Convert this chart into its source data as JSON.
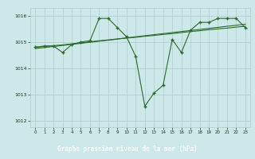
{
  "xlabel": "Graphe pression niveau de la mer (hPa)",
  "x": [
    0,
    1,
    2,
    3,
    4,
    5,
    6,
    7,
    8,
    9,
    10,
    11,
    12,
    13,
    14,
    15,
    16,
    17,
    18,
    19,
    20,
    21,
    22,
    23
  ],
  "y_main": [
    1014.8,
    1014.85,
    1014.85,
    1014.6,
    1014.9,
    1015.0,
    1015.05,
    1015.9,
    1015.9,
    1015.55,
    1015.2,
    1014.45,
    1012.55,
    1013.05,
    1013.35,
    1015.1,
    1014.6,
    1015.45,
    1015.75,
    1015.75,
    1015.9,
    1015.9,
    1015.9,
    1015.55
  ],
  "y_line1": [
    1014.8,
    1014.83,
    1014.86,
    1014.89,
    1014.93,
    1014.97,
    1015.01,
    1015.05,
    1015.08,
    1015.12,
    1015.15,
    1015.18,
    1015.22,
    1015.25,
    1015.29,
    1015.32,
    1015.36,
    1015.4,
    1015.43,
    1015.47,
    1015.5,
    1015.53,
    1015.57,
    1015.6
  ],
  "y_line2": [
    1014.75,
    1014.79,
    1014.83,
    1014.87,
    1014.91,
    1014.95,
    1014.99,
    1015.03,
    1015.07,
    1015.11,
    1015.16,
    1015.2,
    1015.24,
    1015.28,
    1015.32,
    1015.36,
    1015.4,
    1015.44,
    1015.48,
    1015.52,
    1015.56,
    1015.6,
    1015.64,
    1015.68
  ],
  "ylim": [
    1011.75,
    1016.3
  ],
  "yticks": [
    1012,
    1013,
    1014,
    1015,
    1016
  ],
  "xticks": [
    0,
    1,
    2,
    3,
    4,
    5,
    6,
    7,
    8,
    9,
    10,
    11,
    12,
    13,
    14,
    15,
    16,
    17,
    18,
    19,
    20,
    21,
    22,
    23
  ],
  "line_color": "#2d6a2d",
  "bg_color": "#cce8e8",
  "grid_color": "#b0cece",
  "text_color": "#1a3a1a",
  "label_bg": "#2d6a2d",
  "label_text": "#ffffff",
  "fig_width": 3.2,
  "fig_height": 2.0,
  "dpi": 100
}
